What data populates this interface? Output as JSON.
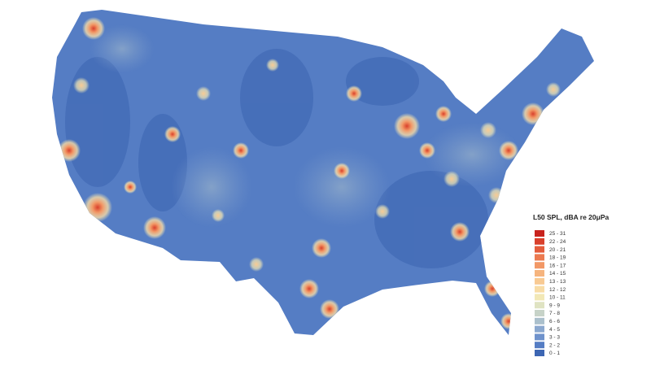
{
  "legend": {
    "title": "L50 SPL, dBA re 20μPa",
    "items": [
      {
        "label": "25 - 31",
        "color": "#c8231d"
      },
      {
        "label": "22 - 24",
        "color": "#d9402c"
      },
      {
        "label": "20 - 21",
        "color": "#e45c3c"
      },
      {
        "label": "18 - 19",
        "color": "#ec7a50"
      },
      {
        "label": "16 - 17",
        "color": "#f29866"
      },
      {
        "label": "14 - 15",
        "color": "#f6b47e"
      },
      {
        "label": "13 - 13",
        "color": "#f8ca93"
      },
      {
        "label": "12 - 12",
        "color": "#f8dca6"
      },
      {
        "label": "10 - 11",
        "color": "#f2e8b6"
      },
      {
        "label": "9 - 9",
        "color": "#dfe3c2"
      },
      {
        "label": "7 - 8",
        "color": "#c7d3c8"
      },
      {
        "label": "6 - 6",
        "color": "#abc0cc"
      },
      {
        "label": "4 - 5",
        "color": "#8ba8cf"
      },
      {
        "label": "3 - 3",
        "color": "#6f92cc"
      },
      {
        "label": "2 - 2",
        "color": "#557dc4"
      },
      {
        "label": "0 - 1",
        "color": "#3d66b3"
      }
    ]
  }
}
